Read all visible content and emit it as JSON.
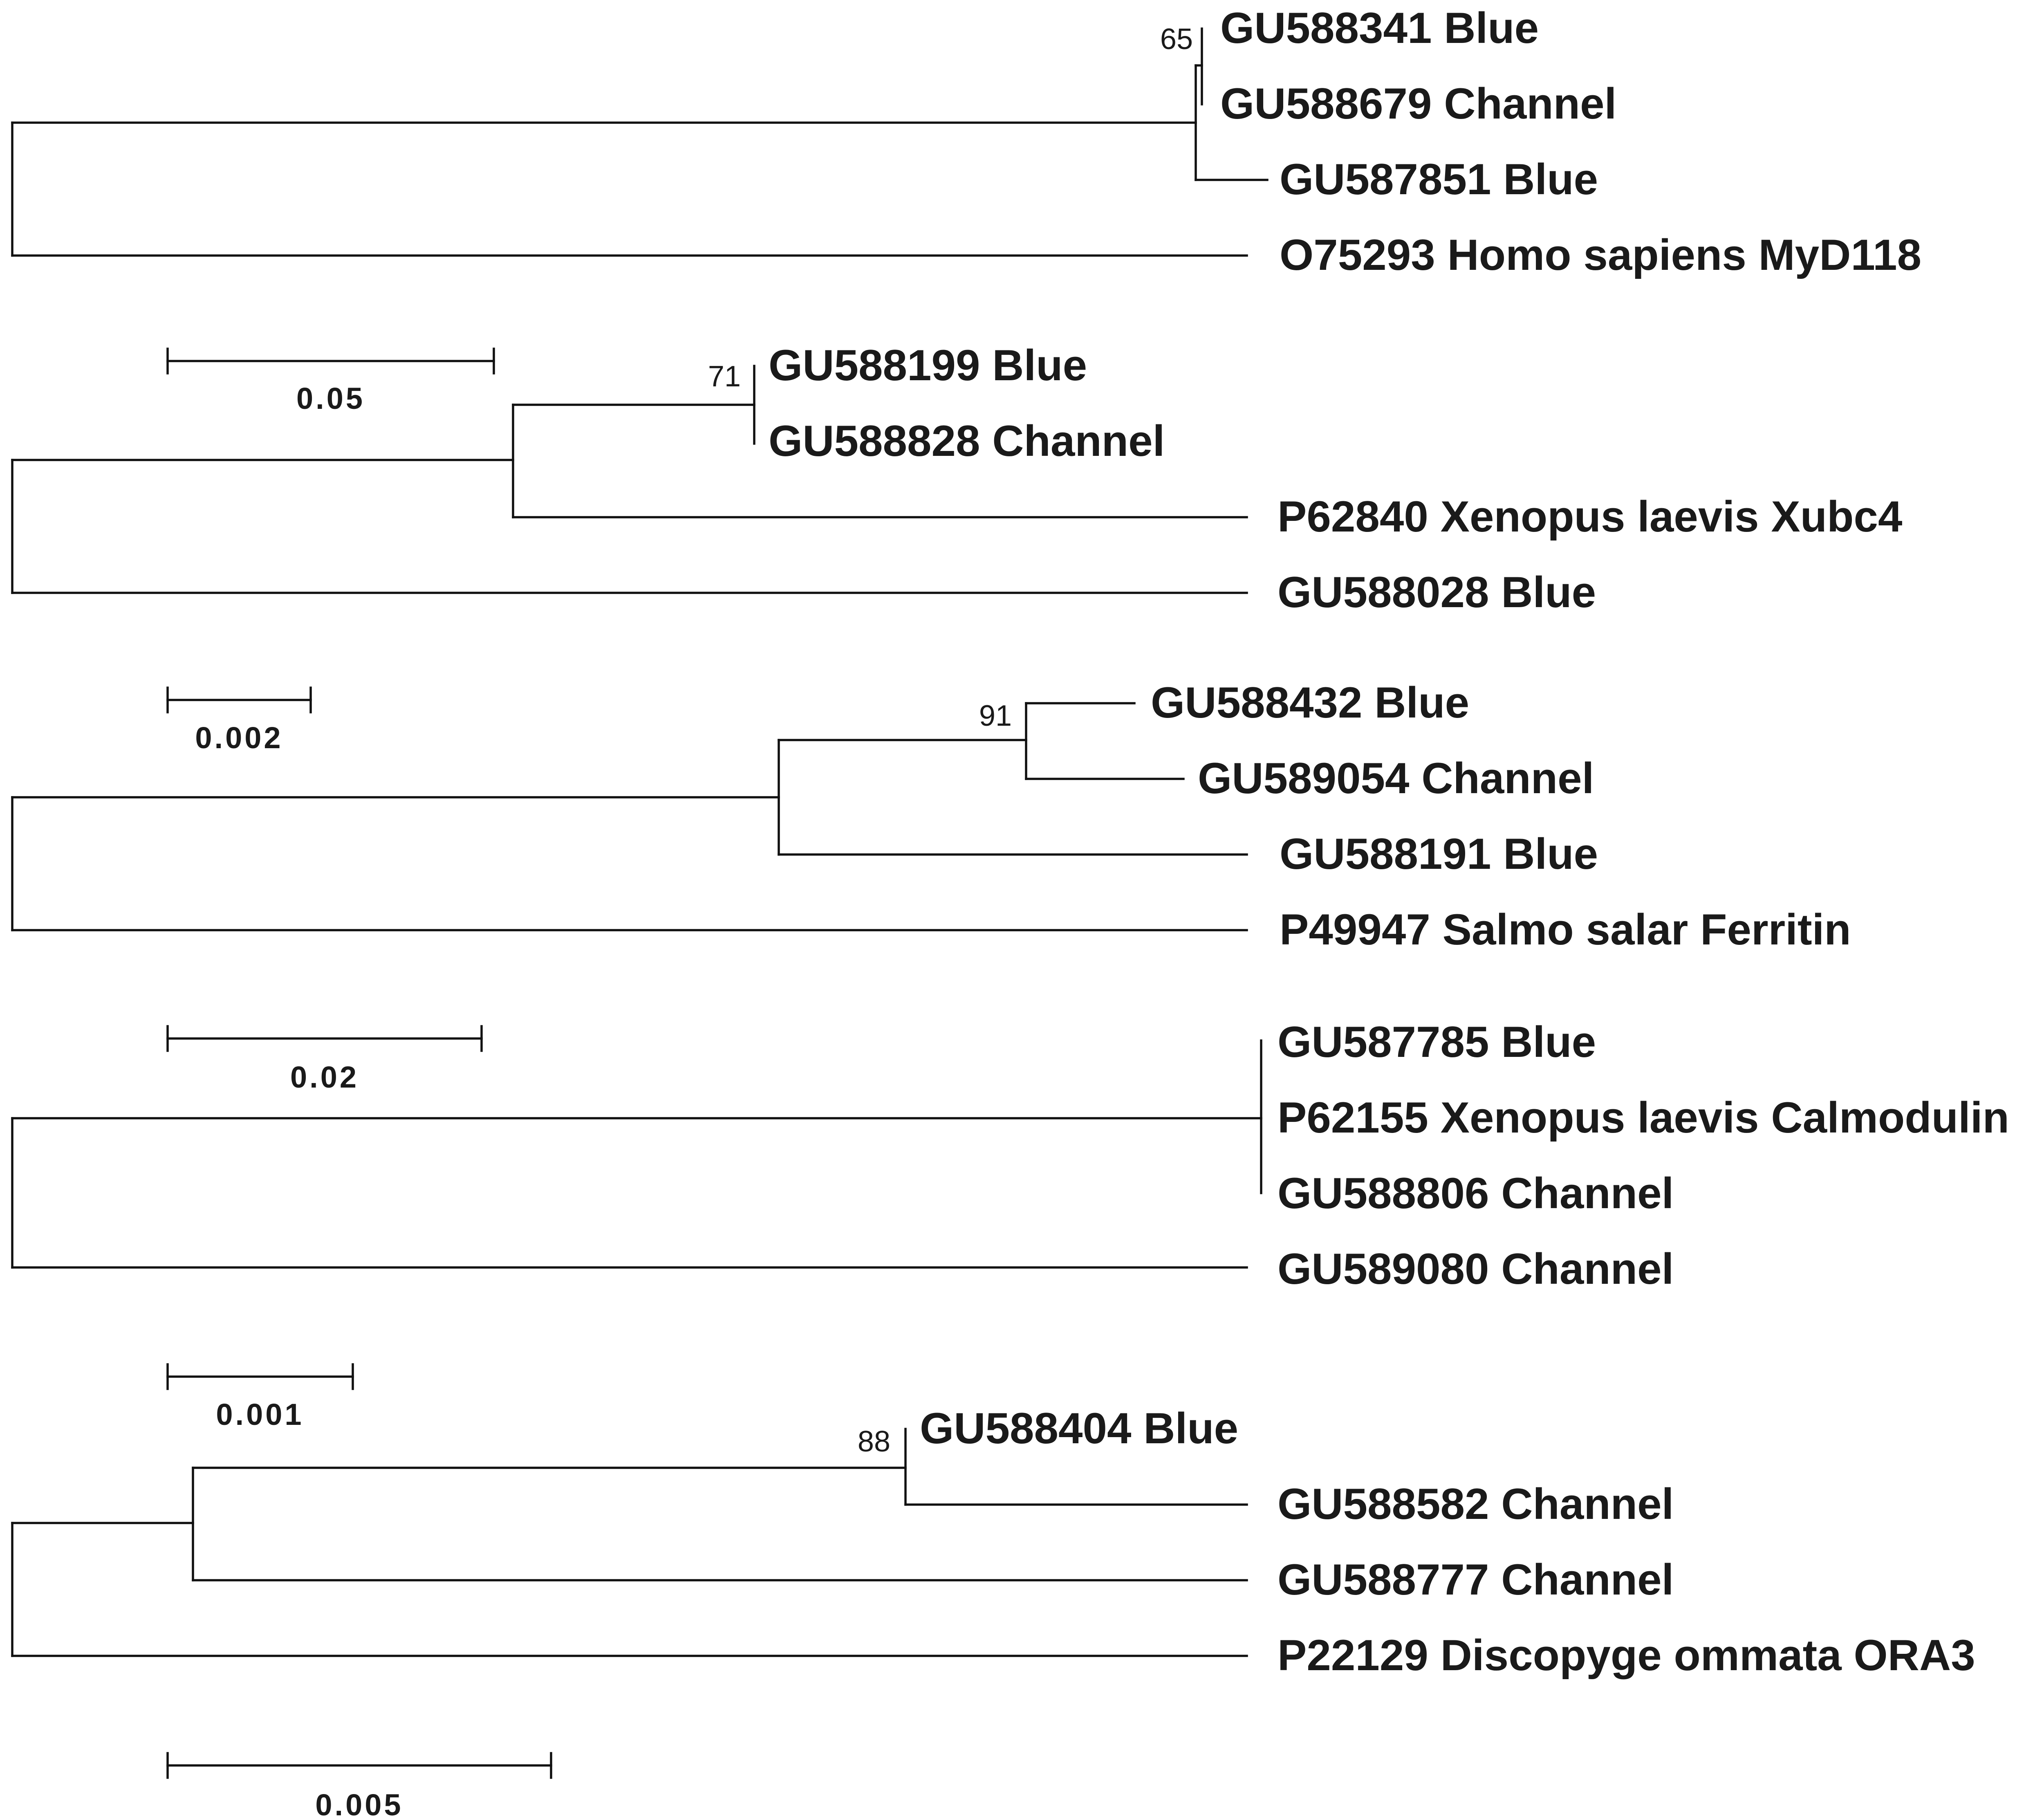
{
  "trees": [
    {
      "name": "myd118",
      "leaves": [
        "GU588341 Blue",
        "GU588679 Channel",
        "GU587851 Blue",
        "O75293 Homo sapiens MyD118"
      ],
      "bootstrap": [
        "65"
      ],
      "scale": "0.05"
    },
    {
      "name": "xubc4",
      "leaves": [
        "GU588199 Blue",
        "GU588828 Channel",
        "P62840 Xenopus laevis Xubc4",
        "GU588028 Blue"
      ],
      "bootstrap": [
        "71"
      ],
      "scale": "0.002"
    },
    {
      "name": "ferritin",
      "leaves": [
        "GU588432 Blue",
        "GU589054 Channel",
        "GU588191 Blue",
        "P49947 Salmo salar Ferritin"
      ],
      "bootstrap": [
        "91"
      ],
      "scale": "0.02"
    },
    {
      "name": "calmodulin",
      "leaves": [
        "GU587785 Blue",
        "P62155 Xenopus laevis Calmodulin",
        "GU588806 Channel",
        "GU589080 Channel"
      ],
      "bootstrap": [],
      "scale": "0.001"
    },
    {
      "name": "ora3",
      "leaves": [
        "GU588404 Blue",
        "GU588582 Channel",
        "GU588777 Channel",
        "P22129 Discopyge ommata ORA3"
      ],
      "bootstrap": [
        "88"
      ],
      "scale": "0.005"
    }
  ]
}
